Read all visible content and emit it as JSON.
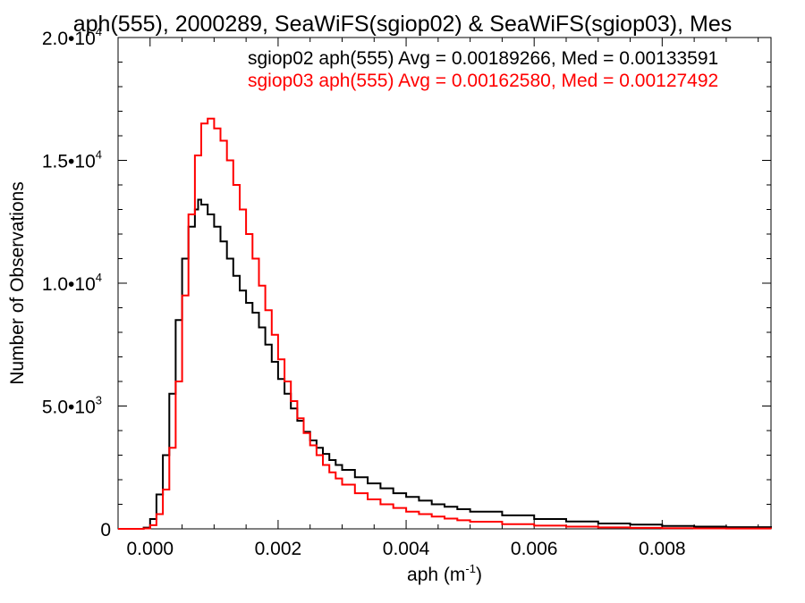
{
  "chart_data": {
    "type": "line",
    "title": "aph(555), 2000289, SeaWiFS(sgiop02) & SeaWiFS(sgiop03), Mes",
    "xlabel": "aph (m",
    "xlabel_exp": "-1",
    "xlabel_suffix": ")",
    "ylabel": "Number of Observations",
    "xlim": [
      -0.0005,
      0.0097
    ],
    "ylim": [
      0,
      20000
    ],
    "x_ticks": [
      0.0,
      0.002,
      0.004,
      0.006,
      0.008
    ],
    "x_tick_labels": [
      "0.000",
      "0.002",
      "0.004",
      "0.006",
      "0.008"
    ],
    "y_ticks": [
      0,
      5000,
      10000,
      15000,
      20000
    ],
    "y_tick_labels": [
      {
        "mant": "0",
        "exp": ""
      },
      {
        "mant": "5.0•10",
        "exp": "3"
      },
      {
        "mant": "1.0•10",
        "exp": "4"
      },
      {
        "mant": "1.5•10",
        "exp": "4"
      },
      {
        "mant": "2.0•10",
        "exp": "4"
      }
    ],
    "legend_position": "top-right",
    "series": [
      {
        "name": "sgiop02 aph(555) Avg = 0.00189266, Med = 0.00133591",
        "color": "#000000",
        "x": [
          -0.0005,
          -0.0001,
          0.0,
          0.0001,
          0.0002,
          0.0003,
          0.0004,
          0.0005,
          0.0006,
          0.0007,
          0.00075,
          0.0008,
          0.0009,
          0.001,
          0.0011,
          0.0012,
          0.0013,
          0.0014,
          0.0015,
          0.0016,
          0.0017,
          0.0018,
          0.0019,
          0.002,
          0.0021,
          0.0022,
          0.0023,
          0.0024,
          0.0025,
          0.0026,
          0.0027,
          0.0028,
          0.0029,
          0.003,
          0.0032,
          0.0034,
          0.0036,
          0.0038,
          0.004,
          0.0042,
          0.0044,
          0.0046,
          0.0048,
          0.005,
          0.0055,
          0.006,
          0.0065,
          0.007,
          0.0075,
          0.008,
          0.0085,
          0.009,
          0.0097
        ],
        "y": [
          0,
          50,
          400,
          1400,
          3000,
          5500,
          8500,
          11000,
          12300,
          13000,
          13400,
          13200,
          12800,
          12300,
          11700,
          11000,
          10300,
          9700,
          9200,
          8800,
          8200,
          7500,
          6800,
          6100,
          5500,
          4900,
          4400,
          3950,
          3600,
          3300,
          3050,
          2800,
          2600,
          2400,
          2100,
          1850,
          1650,
          1450,
          1300,
          1150,
          1000,
          900,
          800,
          700,
          550,
          400,
          300,
          220,
          170,
          120,
          90,
          70,
          50
        ]
      },
      {
        "name": "sgiop03 aph(555) Avg = 0.00162580, Med = 0.00127492",
        "color": "#ff0000",
        "x": [
          -0.0005,
          -0.0001,
          0.0,
          0.0001,
          0.0002,
          0.0003,
          0.0004,
          0.0005,
          0.0006,
          0.0007,
          0.0008,
          0.0009,
          0.001,
          0.0011,
          0.0012,
          0.0013,
          0.0014,
          0.0015,
          0.0016,
          0.0017,
          0.0018,
          0.0019,
          0.002,
          0.0021,
          0.0022,
          0.0023,
          0.0024,
          0.0025,
          0.0026,
          0.0027,
          0.0028,
          0.0029,
          0.003,
          0.0032,
          0.0034,
          0.0036,
          0.0038,
          0.004,
          0.0042,
          0.0044,
          0.0046,
          0.0048,
          0.005,
          0.0055,
          0.006,
          0.0065,
          0.007,
          0.0075,
          0.008,
          0.0085,
          0.009,
          0.0097
        ],
        "y": [
          0,
          20,
          150,
          600,
          1600,
          3300,
          6000,
          9500,
          12800,
          15200,
          16500,
          16700,
          16300,
          15800,
          15000,
          14000,
          13000,
          12000,
          11000,
          9900,
          8900,
          7900,
          6900,
          6000,
          5200,
          4500,
          3900,
          3400,
          3000,
          2600,
          2300,
          2050,
          1800,
          1450,
          1200,
          1000,
          850,
          700,
          600,
          500,
          420,
          350,
          290,
          190,
          130,
          90,
          60,
          40,
          30,
          20,
          15,
          10
        ]
      }
    ]
  }
}
